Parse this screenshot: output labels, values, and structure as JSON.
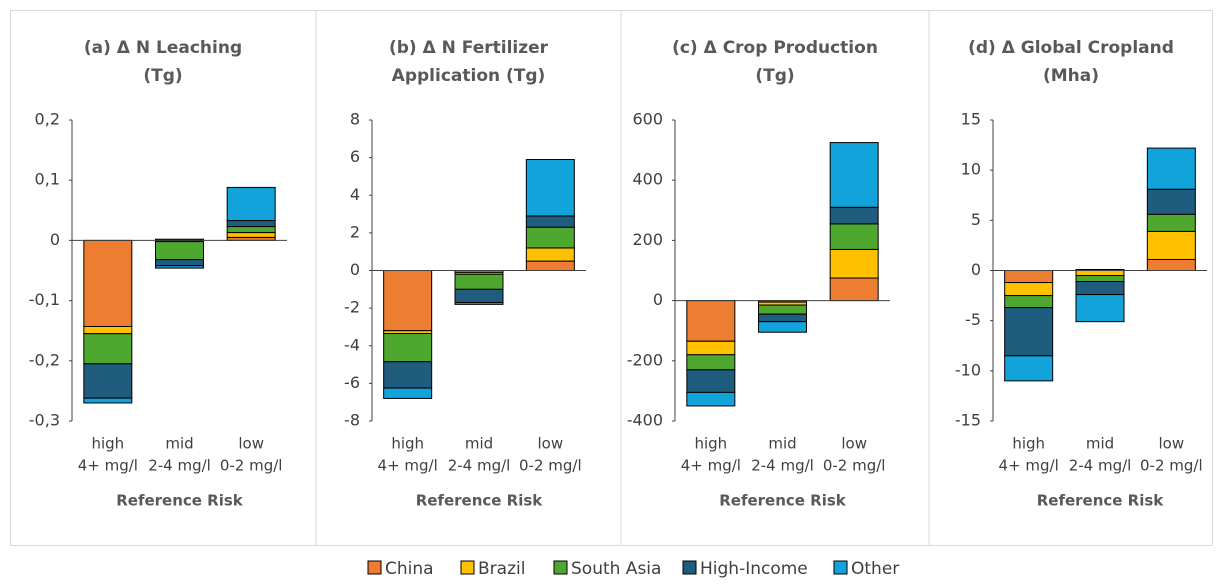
{
  "chart_data": [
    {
      "type": "stacked_bar",
      "title": [
        "(a) Δ N Leaching",
        "(Tg)"
      ],
      "x_label": "Reference Risk",
      "categories": [
        "high",
        "mid",
        "low"
      ],
      "category_sublabels": [
        "4+ mg/l",
        "2-4 mg/l",
        "0-2 mg/l"
      ],
      "ylim": [
        -0.3,
        0.2
      ],
      "yticks": [
        {
          "value": -0.3,
          "label": "-0,3"
        },
        {
          "value": -0.2,
          "label": "-0,2"
        },
        {
          "value": -0.1,
          "label": "-0,1"
        },
        0,
        {
          "value": 0.1,
          "label": "0,1"
        },
        {
          "value": 0.2,
          "label": "0,2"
        }
      ],
      "series": [
        {
          "name": "China",
          "color": "#ed7d31",
          "values": [
            -0.143,
            0.002,
            0.005
          ]
        },
        {
          "name": "Brazil",
          "color": "#ffc000",
          "values": [
            -0.012,
            -0.002,
            0.008
          ]
        },
        {
          "name": "South Asia",
          "color": "#4ea72e",
          "values": [
            -0.05,
            -0.03,
            0.01
          ]
        },
        {
          "name": "High-Income",
          "color": "#1f5c7e",
          "values": [
            -0.057,
            -0.01,
            0.01
          ]
        },
        {
          "name": "Other",
          "color": "#12a3da",
          "values": [
            -0.008,
            -0.004,
            0.055
          ]
        }
      ]
    },
    {
      "type": "stacked_bar",
      "title": [
        "(b) Δ N Fertilizer",
        "Application (Tg)"
      ],
      "x_label": "Reference Risk",
      "categories": [
        "high",
        "mid",
        "low"
      ],
      "category_sublabels": [
        "4+ mg/l",
        "2-4 mg/l",
        "0-2 mg/l"
      ],
      "ylim": [
        -8,
        8
      ],
      "yticks": [
        -8,
        -6,
        -4,
        -2,
        0,
        2,
        4,
        6,
        8
      ],
      "series": [
        {
          "name": "China",
          "color": "#ed7d31",
          "values": [
            -3.2,
            -0.1,
            0.5
          ]
        },
        {
          "name": "Brazil",
          "color": "#ffc000",
          "values": [
            -0.15,
            -0.1,
            0.7
          ]
        },
        {
          "name": "South Asia",
          "color": "#4ea72e",
          "values": [
            -1.5,
            -0.8,
            1.1
          ]
        },
        {
          "name": "High-Income",
          "color": "#1f5c7e",
          "values": [
            -1.4,
            -0.7,
            0.6
          ]
        },
        {
          "name": "Other",
          "color": "#12a3da",
          "values": [
            -0.55,
            -0.1,
            3.0
          ]
        }
      ]
    },
    {
      "type": "stacked_bar",
      "title": [
        "(c) Δ Crop Production",
        "(Tg)"
      ],
      "x_label": "Reference Risk",
      "categories": [
        "high",
        "mid",
        "low"
      ],
      "category_sublabels": [
        "4+ mg/l",
        "2-4 mg/l",
        "0-2 mg/l"
      ],
      "ylim": [
        -400,
        600
      ],
      "yticks": [
        -400,
        -200,
        0,
        200,
        400,
        600
      ],
      "series": [
        {
          "name": "China",
          "color": "#ed7d31",
          "values": [
            -135,
            -5,
            75
          ]
        },
        {
          "name": "Brazil",
          "color": "#ffc000",
          "values": [
            -45,
            -10,
            95
          ]
        },
        {
          "name": "South Asia",
          "color": "#4ea72e",
          "values": [
            -50,
            -30,
            85
          ]
        },
        {
          "name": "High-Income",
          "color": "#1f5c7e",
          "values": [
            -75,
            -25,
            55
          ]
        },
        {
          "name": "Other",
          "color": "#12a3da",
          "values": [
            -45,
            -35,
            215
          ]
        }
      ]
    },
    {
      "type": "stacked_bar",
      "title": [
        "(d) Δ Global Cropland",
        "(Mha)"
      ],
      "x_label": "Reference Risk",
      "categories": [
        "high",
        "mid",
        "low"
      ],
      "category_sublabels": [
        "4+ mg/l",
        "2-4 mg/l",
        "0-2 mg/l"
      ],
      "ylim": [
        -15,
        15
      ],
      "yticks": [
        -15,
        -10,
        -5,
        0,
        5,
        10,
        15
      ],
      "series": [
        {
          "name": "China",
          "color": "#ed7d31",
          "values": [
            -1.2,
            0.1,
            1.1
          ]
        },
        {
          "name": "Brazil",
          "color": "#ffc000",
          "values": [
            -1.3,
            -0.5,
            2.8
          ]
        },
        {
          "name": "South Asia",
          "color": "#4ea72e",
          "values": [
            -1.2,
            -0.6,
            1.7
          ]
        },
        {
          "name": "High-Income",
          "color": "#1f5c7e",
          "values": [
            -4.8,
            -1.3,
            2.5
          ]
        },
        {
          "name": "Other",
          "color": "#12a3da",
          "values": [
            -2.5,
            -2.7,
            4.1
          ]
        }
      ]
    }
  ]
}
